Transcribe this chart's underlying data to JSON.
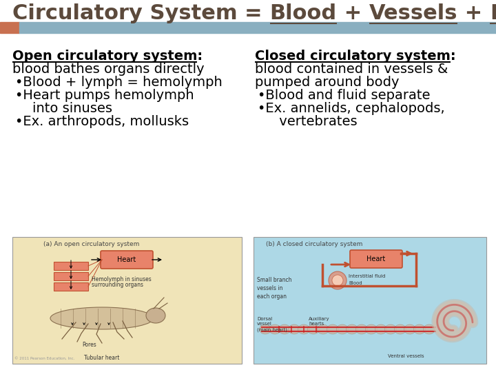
{
  "title_text": "Circulatory System = Blood + Vessels + Heart",
  "title_plain": "Circulatory System = ",
  "title_underlined": [
    "Blood",
    "Vessels",
    "Heart"
  ],
  "title_color": "#5c4a3c",
  "accent_bar_color": "#c87050",
  "header_bar_color": "#8aafc0",
  "bg_color": "#ffffff",
  "left_heading": "Open circulatory system",
  "left_line1": "blood bathes organs directly",
  "left_bullets": [
    "•Blood + lymph = hemolymph",
    "•Heart pumps hemolymph",
    "    into sinuses",
    "•Ex. arthropods, mollusks"
  ],
  "right_heading": "Closed circulatory system",
  "right_line1a": "blood contained in vessels &",
  "right_line1b": "pumped around body",
  "right_bullets": [
    "•Blood and fluid separate",
    "•Ex. annelids, cephalopods,",
    "     vertebrates"
  ],
  "font_size_title": 22,
  "font_size_body": 14,
  "font_size_heading": 14,
  "font_size_diagram": 7,
  "left_img_bg": "#f0e4b8",
  "right_img_bg": "#add8e6",
  "heart_color": "#e8836a",
  "heart_border": "#c05030",
  "copyright": "© 2011 Pearson Education, Inc."
}
